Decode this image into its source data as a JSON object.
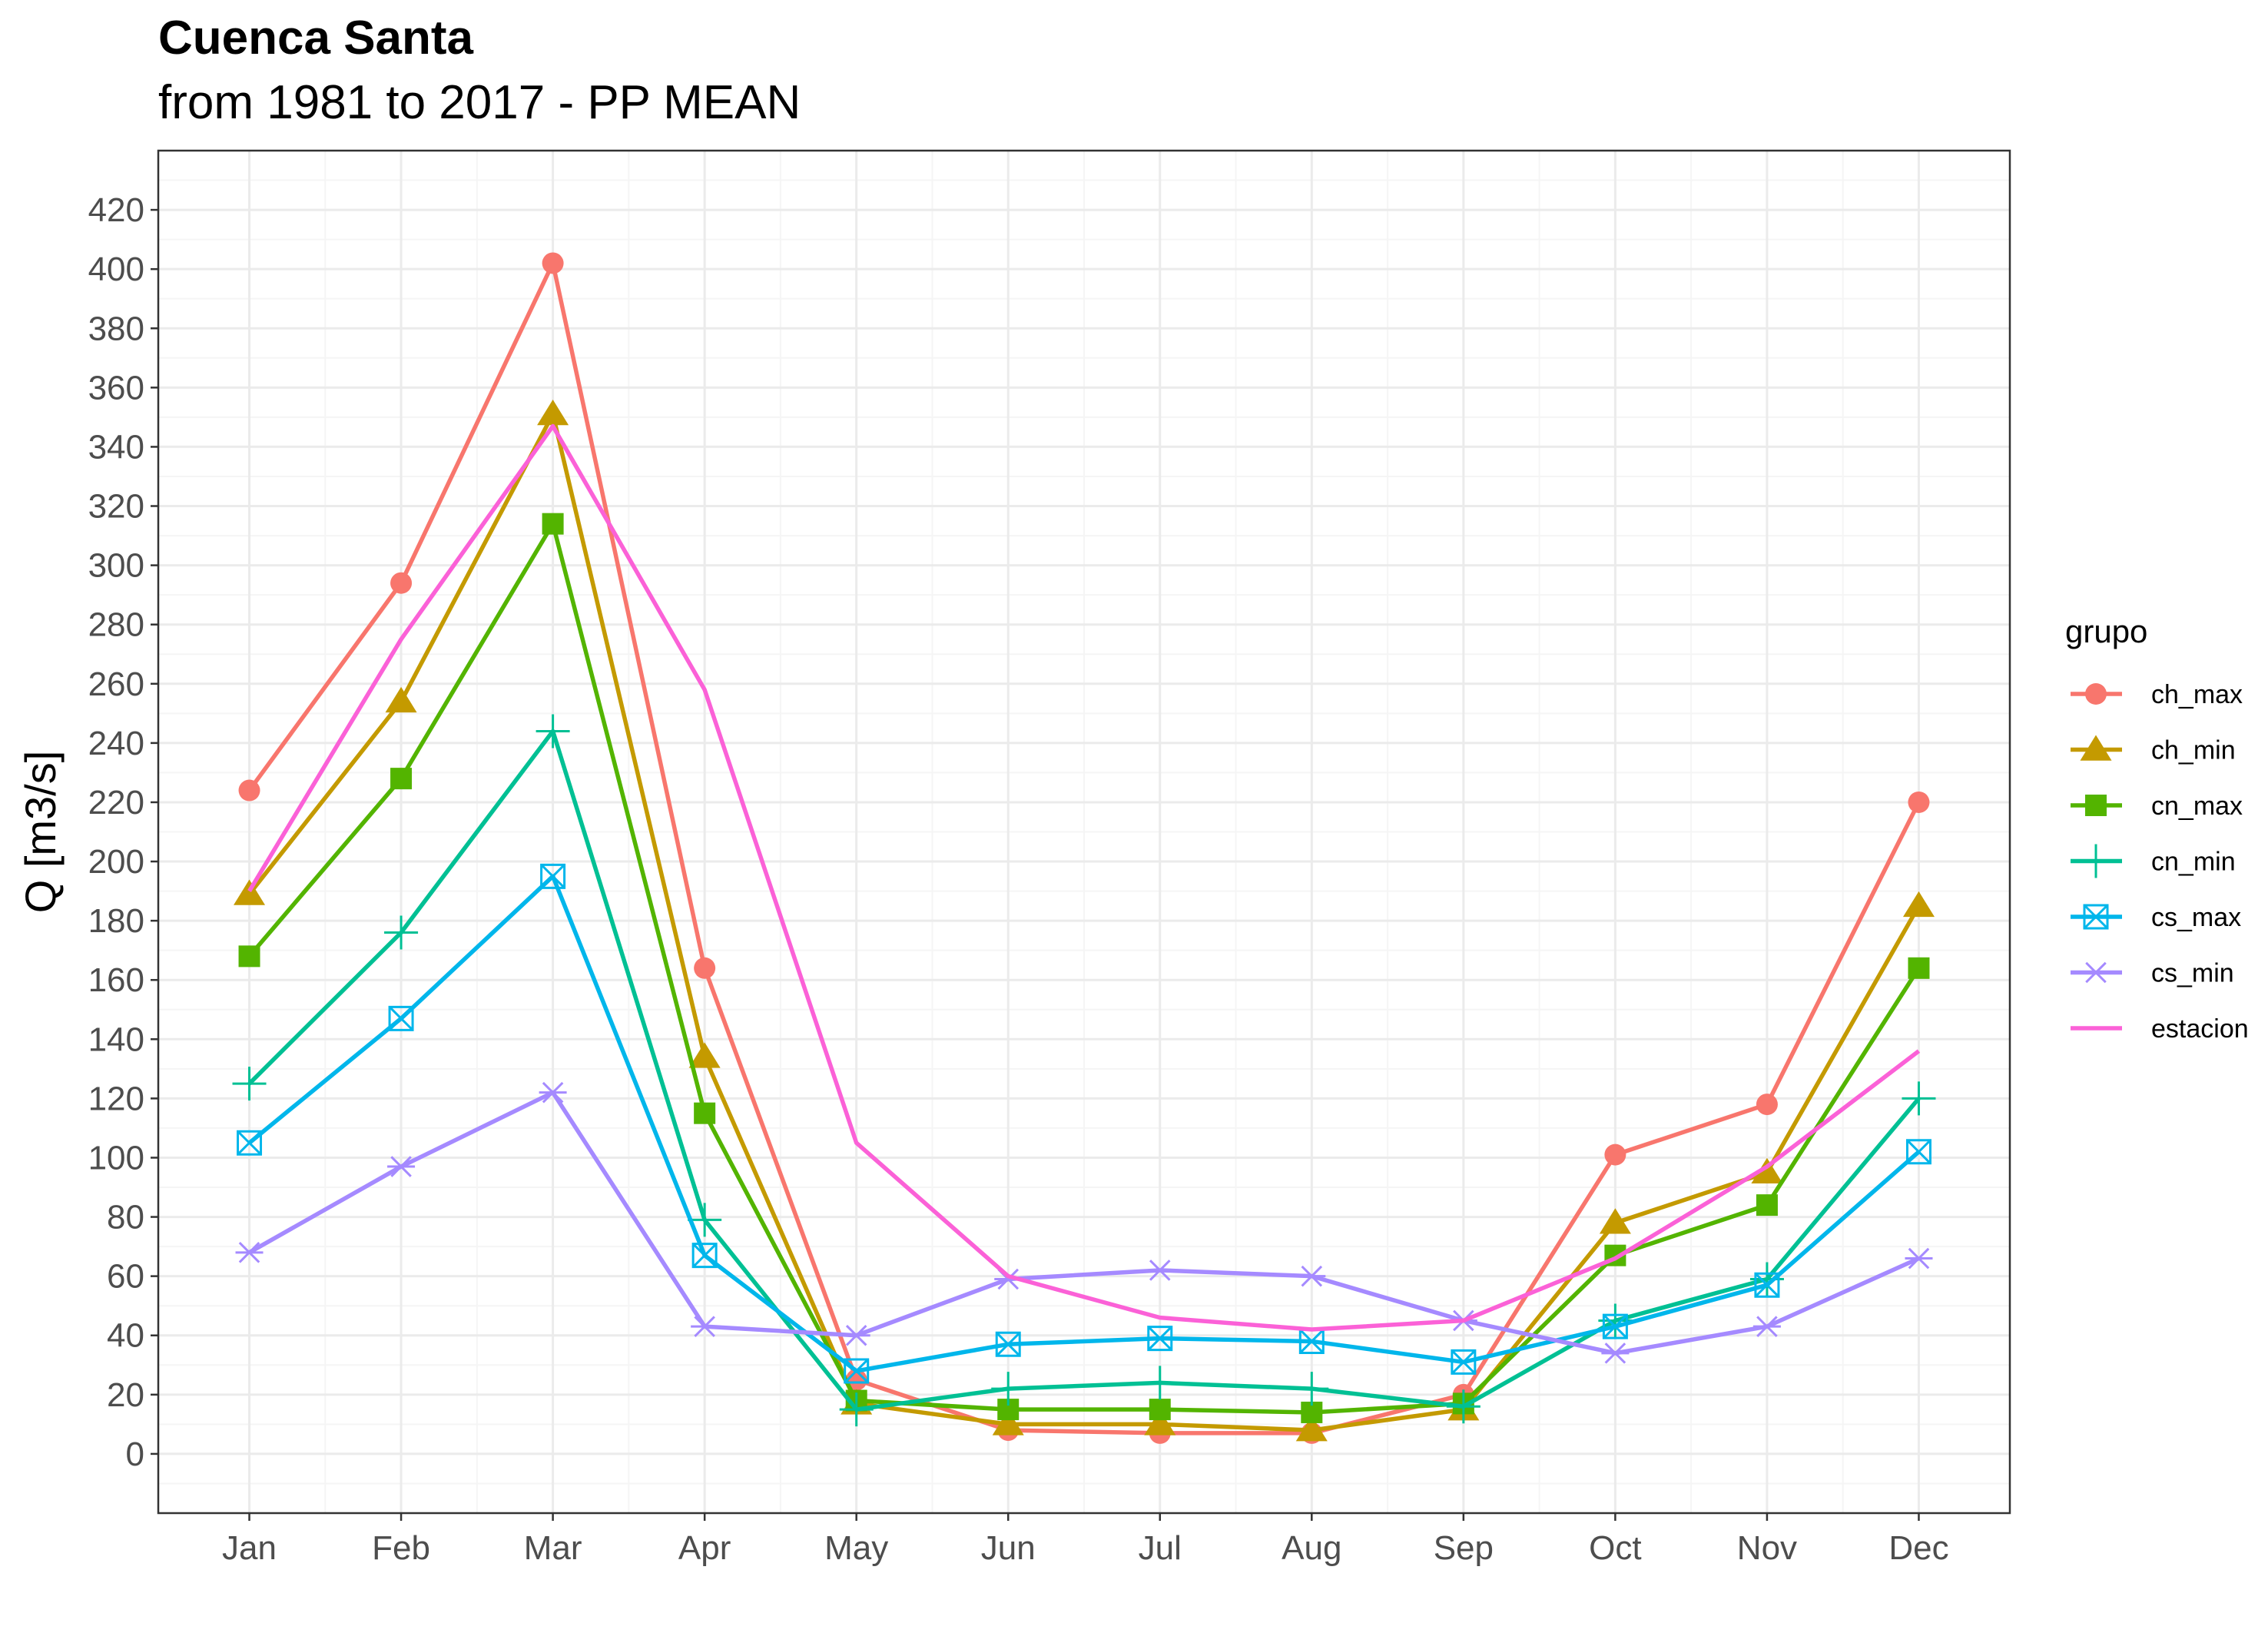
{
  "chart_data": {
    "type": "line",
    "title": "Cuenca Santa",
    "subtitle": "from 1981 to 2017 - PP MEAN",
    "xlabel": "",
    "ylabel": "Q [m3/s]",
    "categories": [
      "Jan",
      "Feb",
      "Mar",
      "Apr",
      "May",
      "Jun",
      "Jul",
      "Aug",
      "Sep",
      "Oct",
      "Nov",
      "Dec"
    ],
    "ylim": [
      -20,
      440
    ],
    "yticks": [
      0,
      20,
      40,
      60,
      80,
      100,
      120,
      140,
      160,
      180,
      200,
      220,
      240,
      260,
      280,
      300,
      320,
      340,
      360,
      380,
      400,
      420
    ],
    "grid": true,
    "legend": {
      "title": "grupo",
      "position": "right"
    },
    "series": [
      {
        "name": "ch_max",
        "color": "#F8766D",
        "marker": "circle",
        "values": [
          224,
          294,
          402,
          164,
          25,
          8,
          7,
          7,
          20,
          101,
          118,
          220
        ]
      },
      {
        "name": "ch_min",
        "color": "#C49A00",
        "marker": "triangle",
        "values": [
          189,
          254,
          351,
          134,
          17,
          10,
          10,
          8,
          15,
          78,
          95,
          185
        ]
      },
      {
        "name": "cn_max",
        "color": "#53B400",
        "marker": "square",
        "values": [
          168,
          228,
          314,
          115,
          18,
          15,
          15,
          14,
          17,
          67,
          84,
          164
        ]
      },
      {
        "name": "cn_min",
        "color": "#00C094",
        "marker": "plus",
        "values": [
          125,
          176,
          244,
          79,
          15,
          22,
          24,
          22,
          16,
          45,
          59,
          120
        ]
      },
      {
        "name": "cs_max",
        "color": "#00B6EB",
        "marker": "square-x",
        "values": [
          105,
          147,
          195,
          67,
          28,
          37,
          39,
          38,
          31,
          43,
          57,
          102
        ]
      },
      {
        "name": "cs_min",
        "color": "#A58AFF",
        "marker": "asterisk",
        "values": [
          68,
          97,
          122,
          43,
          40,
          59,
          62,
          60,
          45,
          34,
          43,
          66
        ]
      },
      {
        "name": "estacion",
        "color": "#FB61D7",
        "marker": "none",
        "values": [
          190,
          275,
          347,
          258,
          105,
          60,
          46,
          42,
          45,
          66,
          97,
          136
        ]
      }
    ]
  }
}
